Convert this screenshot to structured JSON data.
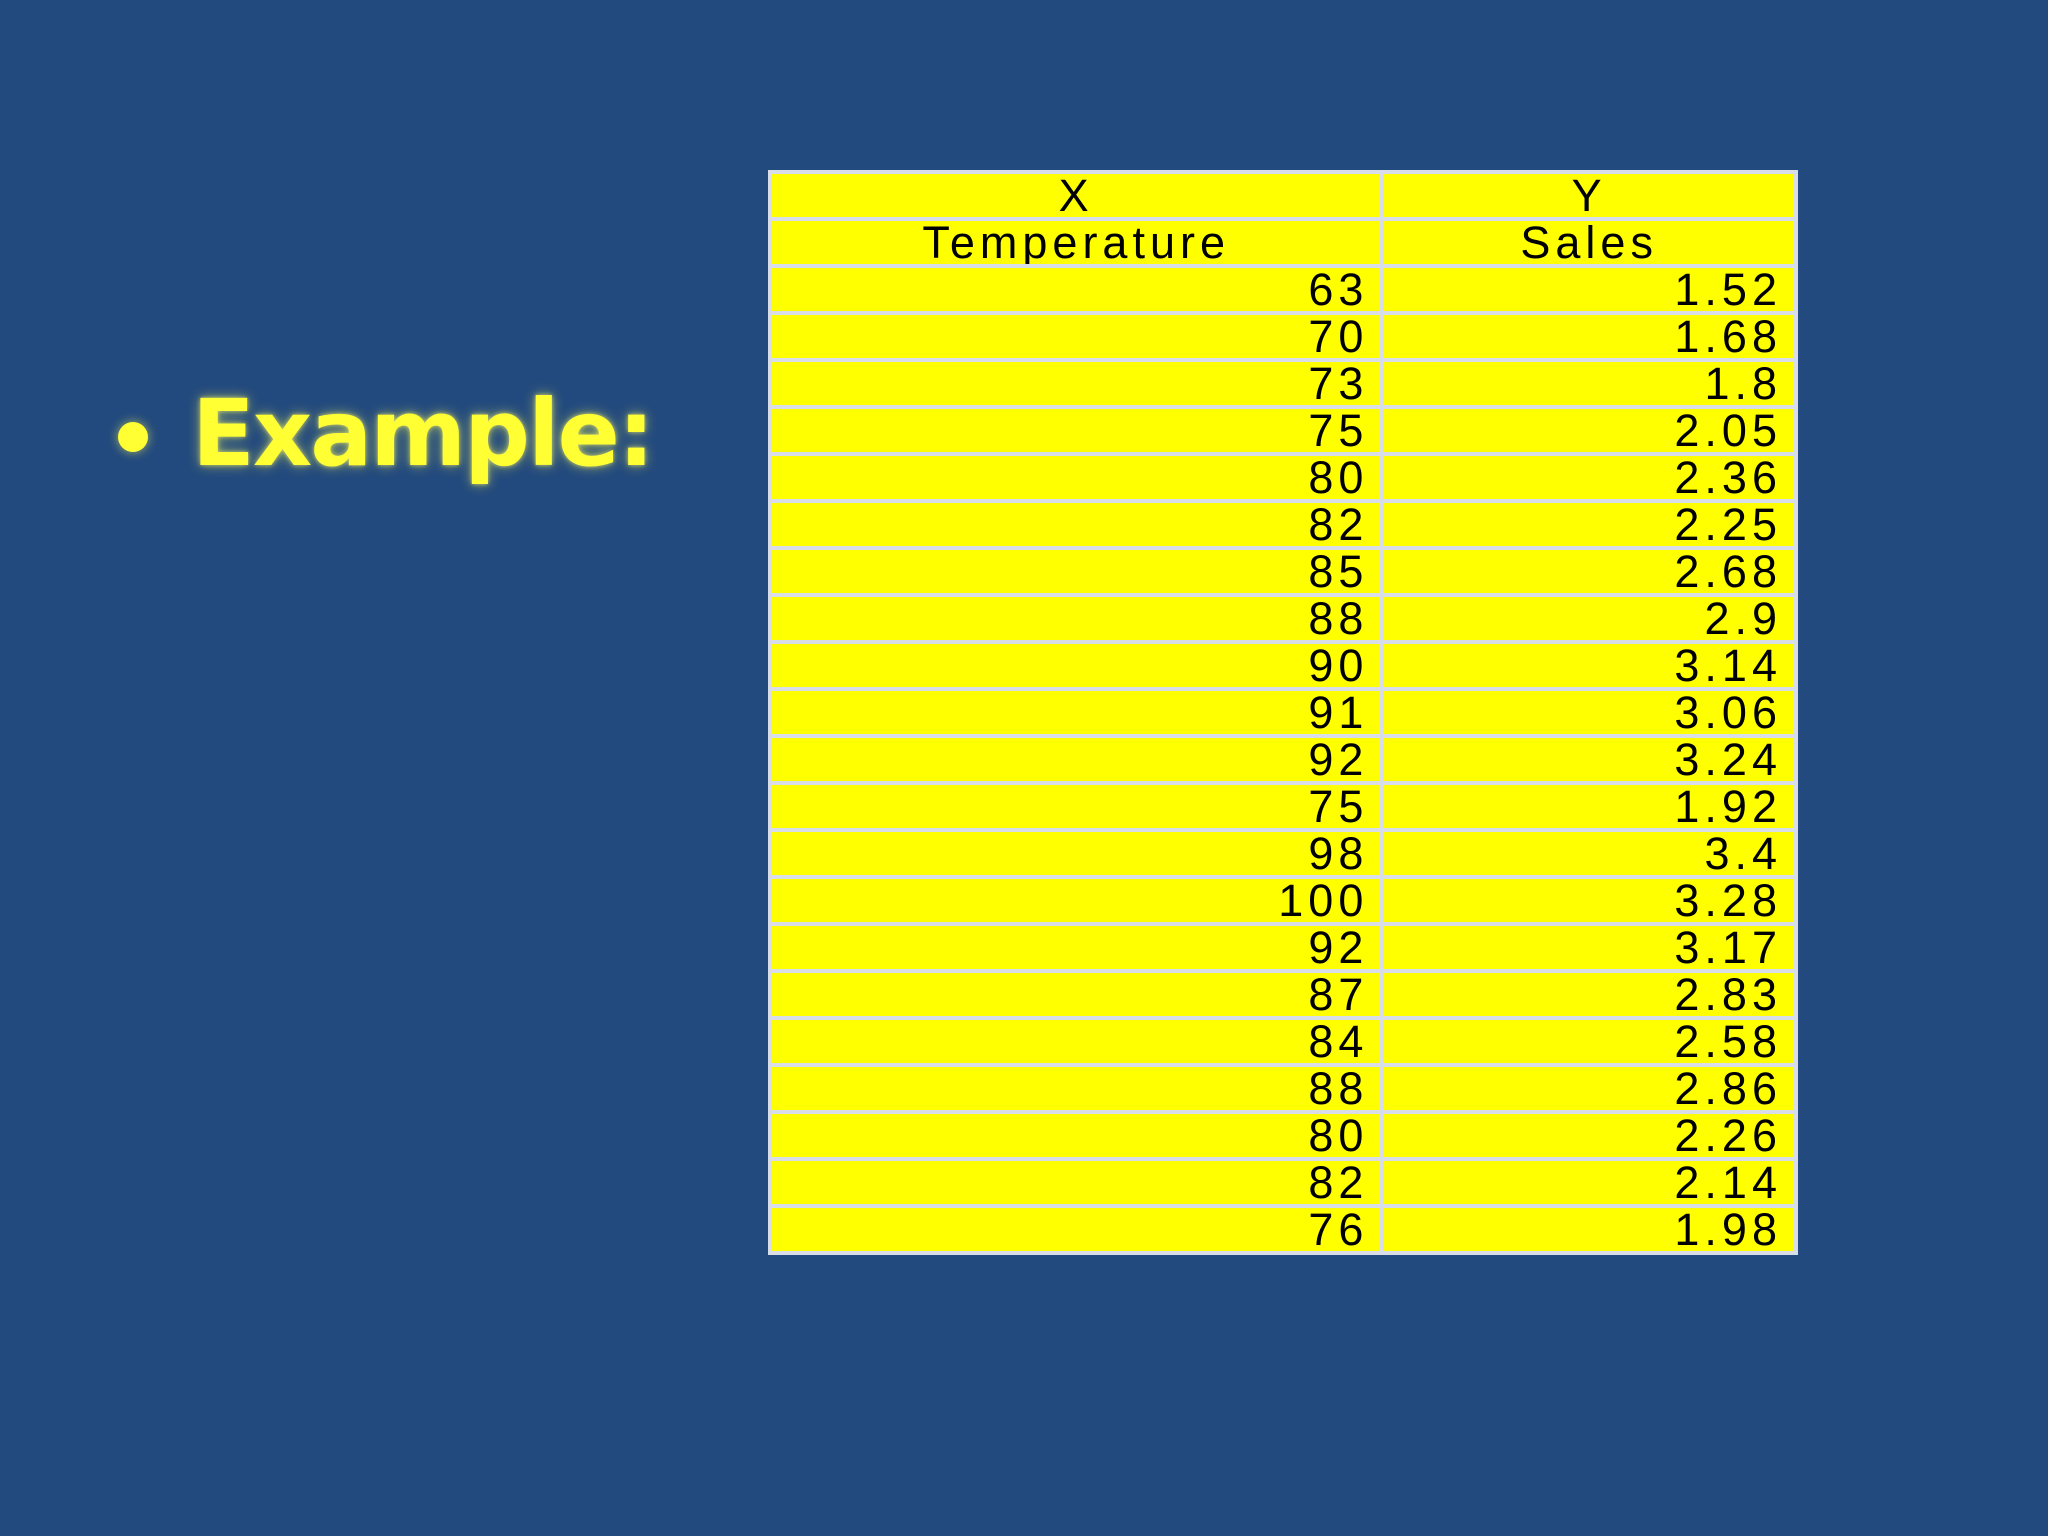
{
  "slide": {
    "bullet_text": "Example:"
  },
  "table": {
    "header_row1": [
      "X",
      "Y"
    ],
    "header_row2": [
      "Temperature",
      "Sales"
    ],
    "rows": [
      [
        "63",
        "1.52"
      ],
      [
        "70",
        "1.68"
      ],
      [
        "73",
        "1.8"
      ],
      [
        "75",
        "2.05"
      ],
      [
        "80",
        "2.36"
      ],
      [
        "82",
        "2.25"
      ],
      [
        "85",
        "2.68"
      ],
      [
        "88",
        "2.9"
      ],
      [
        "90",
        "3.14"
      ],
      [
        "91",
        "3.06"
      ],
      [
        "92",
        "3.24"
      ],
      [
        "75",
        "1.92"
      ],
      [
        "98",
        "3.4"
      ],
      [
        "100",
        "3.28"
      ],
      [
        "92",
        "3.17"
      ],
      [
        "87",
        "2.83"
      ],
      [
        "84",
        "2.58"
      ],
      [
        "88",
        "2.86"
      ],
      [
        "80",
        "2.26"
      ],
      [
        "82",
        "2.14"
      ],
      [
        "76",
        "1.98"
      ]
    ]
  },
  "colors": {
    "background": "#234A7E",
    "accent_text": "#FFFF33",
    "cell_fill": "#FFFF00",
    "grid": "#D9DDE8"
  }
}
